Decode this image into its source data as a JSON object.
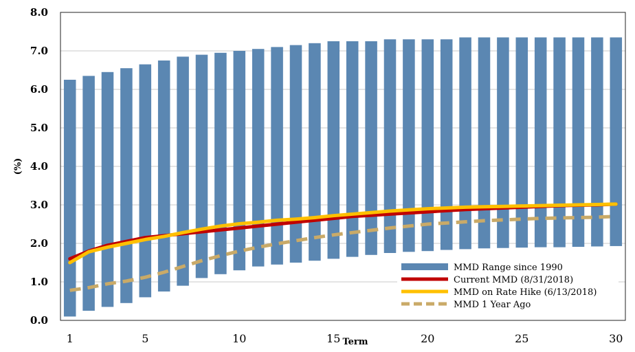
{
  "chart_data": {
    "type": "bar",
    "xlabel": "Term",
    "ylabel": "(%)",
    "ylim": [
      0,
      8
    ],
    "yticks": [
      "0.0",
      "1.0",
      "2.0",
      "3.0",
      "4.0",
      "5.0",
      "6.0",
      "7.0",
      "8.0"
    ],
    "xtick_labels": [
      "1",
      "5",
      "10",
      "15",
      "20",
      "25",
      "30"
    ],
    "xticks": [
      1,
      5,
      10,
      15,
      20,
      25,
      30
    ],
    "grid": true,
    "legend_position": "bottom-right",
    "x": [
      1,
      2,
      3,
      4,
      5,
      6,
      7,
      8,
      9,
      10,
      11,
      12,
      13,
      14,
      15,
      16,
      17,
      18,
      19,
      20,
      21,
      22,
      23,
      24,
      25,
      26,
      27,
      28,
      29,
      30
    ],
    "range_bars": {
      "name": "MMD Range since 1990",
      "color": "#5b87b2",
      "low": [
        0.1,
        0.25,
        0.35,
        0.45,
        0.6,
        0.75,
        0.9,
        1.1,
        1.2,
        1.3,
        1.4,
        1.45,
        1.5,
        1.55,
        1.6,
        1.65,
        1.7,
        1.75,
        1.78,
        1.8,
        1.83,
        1.85,
        1.87,
        1.88,
        1.89,
        1.9,
        1.9,
        1.91,
        1.92,
        1.93
      ],
      "high": [
        6.25,
        6.35,
        6.45,
        6.55,
        6.65,
        6.75,
        6.85,
        6.9,
        6.95,
        7.0,
        7.05,
        7.1,
        7.15,
        7.2,
        7.25,
        7.25,
        7.25,
        7.3,
        7.3,
        7.3,
        7.3,
        7.35,
        7.35,
        7.35,
        7.35,
        7.35,
        7.35,
        7.35,
        7.35,
        7.35
      ]
    },
    "series": [
      {
        "name": "Current MMD (8/31/2018)",
        "color": "#c00000",
        "dash": false,
        "values": [
          1.6,
          1.8,
          1.95,
          2.05,
          2.15,
          2.2,
          2.25,
          2.3,
          2.35,
          2.4,
          2.45,
          2.5,
          2.55,
          2.6,
          2.65,
          2.7,
          2.73,
          2.76,
          2.79,
          2.82,
          2.85,
          2.88,
          2.9,
          2.92,
          2.94,
          2.96,
          2.98,
          2.99,
          3.0,
          3.02
        ]
      },
      {
        "name": "MMD on Rate Hike (6/13/2018)",
        "color": "#ffc000",
        "dash": false,
        "values": [
          1.5,
          1.78,
          1.9,
          2.0,
          2.1,
          2.18,
          2.28,
          2.37,
          2.45,
          2.51,
          2.55,
          2.6,
          2.63,
          2.67,
          2.72,
          2.76,
          2.8,
          2.84,
          2.87,
          2.9,
          2.92,
          2.94,
          2.95,
          2.96,
          2.97,
          2.98,
          2.99,
          3.0,
          3.01,
          3.02
        ]
      },
      {
        "name": "MMD 1 Year Ago",
        "color": "#c9aa68",
        "dash": true,
        "values": [
          0.78,
          0.85,
          0.95,
          1.02,
          1.12,
          1.25,
          1.4,
          1.55,
          1.68,
          1.8,
          1.9,
          1.99,
          2.07,
          2.15,
          2.22,
          2.28,
          2.34,
          2.4,
          2.45,
          2.5,
          2.53,
          2.56,
          2.59,
          2.61,
          2.63,
          2.65,
          2.66,
          2.67,
          2.68,
          2.7
        ]
      }
    ]
  }
}
